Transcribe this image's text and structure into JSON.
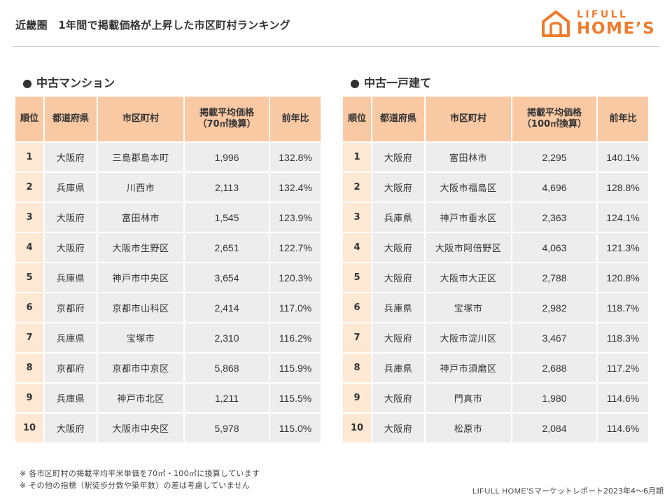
{
  "header": {
    "title": "近畿圏　1年間で掲載価格が上昇した市区町村ランキング"
  },
  "logo": {
    "line1": "LIFULL",
    "line2": "HOME’S",
    "icon": "house-logo-icon",
    "color": "#ef7b2c"
  },
  "colors": {
    "header_cell": "#f9c9a4",
    "rank_cell": "#fde8d4",
    "body_cell": "#ededed"
  },
  "left": {
    "title": "中古マンション",
    "bullet": "●",
    "columns": [
      "順位",
      "都道府県",
      "市区町村",
      "掲載平均価格",
      "前年比"
    ],
    "price_sub": "（70㎡換算）",
    "rows": [
      {
        "rank": "1",
        "pref": "大阪府",
        "city": "三島郡島本町",
        "price": "1,996",
        "yoy": "132.8%"
      },
      {
        "rank": "2",
        "pref": "兵庫県",
        "city": "川西市",
        "price": "2,113",
        "yoy": "132.4%"
      },
      {
        "rank": "3",
        "pref": "大阪府",
        "city": "富田林市",
        "price": "1,545",
        "yoy": "123.9%"
      },
      {
        "rank": "4",
        "pref": "大阪府",
        "city": "大阪市生野区",
        "price": "2,651",
        "yoy": "122.7%"
      },
      {
        "rank": "5",
        "pref": "兵庫県",
        "city": "神戸市中央区",
        "price": "3,654",
        "yoy": "120.3%"
      },
      {
        "rank": "6",
        "pref": "京都府",
        "city": "京都市山科区",
        "price": "2,414",
        "yoy": "117.0%"
      },
      {
        "rank": "7",
        "pref": "兵庫県",
        "city": "宝塚市",
        "price": "2,310",
        "yoy": "116.2%"
      },
      {
        "rank": "8",
        "pref": "京都府",
        "city": "京都市中京区",
        "price": "5,868",
        "yoy": "115.9%"
      },
      {
        "rank": "9",
        "pref": "兵庫県",
        "city": "神戸市北区",
        "price": "1,211",
        "yoy": "115.5%"
      },
      {
        "rank": "10",
        "pref": "大阪府",
        "city": "大阪市中央区",
        "price": "5,978",
        "yoy": "115.0%"
      }
    ]
  },
  "right": {
    "title": "中古一戸建て",
    "bullet": "●",
    "columns": [
      "順位",
      "都道府県",
      "市区町村",
      "掲載平均価格",
      "前年比"
    ],
    "price_sub": "（100㎡換算）",
    "rows": [
      {
        "rank": "1",
        "pref": "大阪府",
        "city": "富田林市",
        "price": "2,295",
        "yoy": "140.1%"
      },
      {
        "rank": "2",
        "pref": "大阪府",
        "city": "大阪市福島区",
        "price": "4,696",
        "yoy": "128.8%"
      },
      {
        "rank": "3",
        "pref": "兵庫県",
        "city": "神戸市垂水区",
        "price": "2,363",
        "yoy": "124.1%"
      },
      {
        "rank": "4",
        "pref": "大阪府",
        "city": "大阪市阿倍野区",
        "price": "4,063",
        "yoy": "121.3%"
      },
      {
        "rank": "5",
        "pref": "大阪府",
        "city": "大阪市大正区",
        "price": "2,788",
        "yoy": "120.8%"
      },
      {
        "rank": "6",
        "pref": "兵庫県",
        "city": "宝塚市",
        "price": "2,982",
        "yoy": "118.7%"
      },
      {
        "rank": "7",
        "pref": "大阪府",
        "city": "大阪市淀川区",
        "price": "3,467",
        "yoy": "118.3%"
      },
      {
        "rank": "8",
        "pref": "兵庫県",
        "city": "神戸市須磨区",
        "price": "2,688",
        "yoy": "117.2%"
      },
      {
        "rank": "9",
        "pref": "大阪府",
        "city": "門真市",
        "price": "1,980",
        "yoy": "114.6%"
      },
      {
        "rank": "10",
        "pref": "大阪府",
        "city": "松原市",
        "price": "2,084",
        "yoy": "114.6%"
      }
    ]
  },
  "notes": [
    "※ 各市区町村の掲載平均平米単価を70㎡・100㎡に換算しています",
    "※ その他の指標（駅徒歩分数や築年数）の差は考慮していません"
  ],
  "source": {
    "brand": "LIFULL HOME’S",
    "text": "マーケットレポート2023年4～6月期"
  }
}
